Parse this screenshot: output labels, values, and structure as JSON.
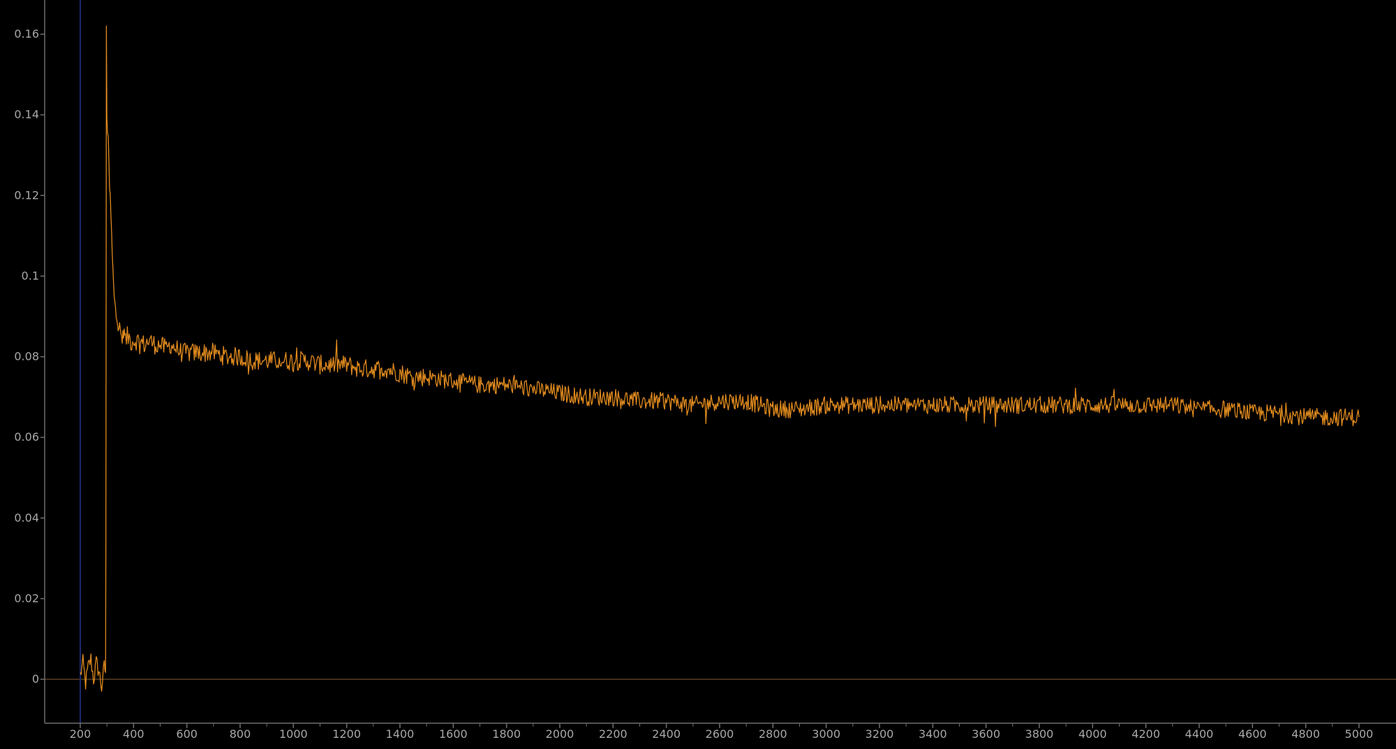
{
  "chart_data": {
    "type": "line",
    "title": "",
    "xlabel": "",
    "ylabel": "",
    "xlim": [
      150,
      5130
    ],
    "ylim": [
      -0.011,
      0.17
    ],
    "x_ticks": [
      200,
      400,
      600,
      800,
      1000,
      1200,
      1400,
      1600,
      1800,
      2000,
      2200,
      2400,
      2600,
      2800,
      3000,
      3200,
      3400,
      3600,
      3800,
      4000,
      4200,
      4400,
      4600,
      4800,
      5000
    ],
    "x_tick_labels": [
      "200",
      "400",
      "600",
      "800",
      "1000",
      "1200",
      "1400",
      "1600",
      "1800",
      "2000",
      "2200",
      "2400",
      "2600",
      "2800",
      "3000",
      "3200",
      "3400",
      "3600",
      "3800",
      "4000",
      "4200",
      "4400",
      "4600",
      "4800",
      "5000"
    ],
    "y_ticks": [
      0,
      0.02,
      0.04,
      0.06,
      0.08,
      0.1,
      0.12,
      0.14,
      0.16
    ],
    "y_tick_labels": [
      "0",
      "0.02",
      "0.04",
      "0.06",
      "0.08",
      "0.1",
      "0.12",
      "0.14",
      "0.16"
    ],
    "grid": false,
    "legend": "none",
    "reference_lines": [
      {
        "orientation": "horizontal",
        "value": 0,
        "color": "#5a4128"
      },
      {
        "orientation": "vertical",
        "value": 200,
        "color": "#1c2a6e"
      }
    ],
    "series": [
      {
        "color": "#e08a1e",
        "x": [
          200,
          210,
          220,
          230,
          240,
          250,
          260,
          270,
          280,
          290,
          295,
          296,
          297,
          298,
          300,
          305,
          310,
          315,
          320,
          325,
          330,
          335,
          340,
          345,
          350,
          355,
          360,
          365,
          370,
          380,
          390,
          400,
          420,
          440,
          460,
          480,
          500,
          520,
          540,
          560,
          580,
          600,
          650,
          700,
          750,
          800,
          850,
          900,
          950,
          1000,
          1050,
          1100,
          1150,
          1200,
          1250,
          1300,
          1350,
          1400,
          1450,
          1500,
          1600,
          1700,
          1800,
          1900,
          2000,
          2100,
          2200,
          2300,
          2400,
          2500,
          2600,
          2700,
          2800,
          2900,
          3000,
          3100,
          3200,
          3300,
          3400,
          3500,
          3600,
          3700,
          3800,
          3900,
          4000,
          4100,
          4200,
          4300,
          4400,
          4500,
          4600,
          4700,
          4800,
          4900,
          5000
        ],
        "y": [
          0.001,
          0.004,
          -0.001,
          0.003,
          0.005,
          0.0,
          0.004,
          0.002,
          -0.002,
          0.003,
          0.002,
          0.03,
          0.09,
          0.162,
          0.14,
          0.132,
          0.122,
          0.115,
          0.105,
          0.097,
          0.094,
          0.091,
          0.089,
          0.087,
          0.086,
          0.085,
          0.084,
          0.085,
          0.084,
          0.085,
          0.084,
          0.084,
          0.084,
          0.083,
          0.084,
          0.083,
          0.083,
          0.082,
          0.083,
          0.082,
          0.081,
          0.081,
          0.081,
          0.081,
          0.08,
          0.08,
          0.079,
          0.079,
          0.079,
          0.079,
          0.079,
          0.078,
          0.078,
          0.078,
          0.077,
          0.077,
          0.077,
          0.076,
          0.075,
          0.075,
          0.074,
          0.073,
          0.073,
          0.072,
          0.071,
          0.07,
          0.07,
          0.069,
          0.069,
          0.068,
          0.069,
          0.069,
          0.067,
          0.067,
          0.068,
          0.068,
          0.068,
          0.068,
          0.068,
          0.068,
          0.068,
          0.068,
          0.068,
          0.068,
          0.068,
          0.068,
          0.068,
          0.068,
          0.067,
          0.067,
          0.066,
          0.066,
          0.065,
          0.065,
          0.065
        ]
      }
    ]
  }
}
